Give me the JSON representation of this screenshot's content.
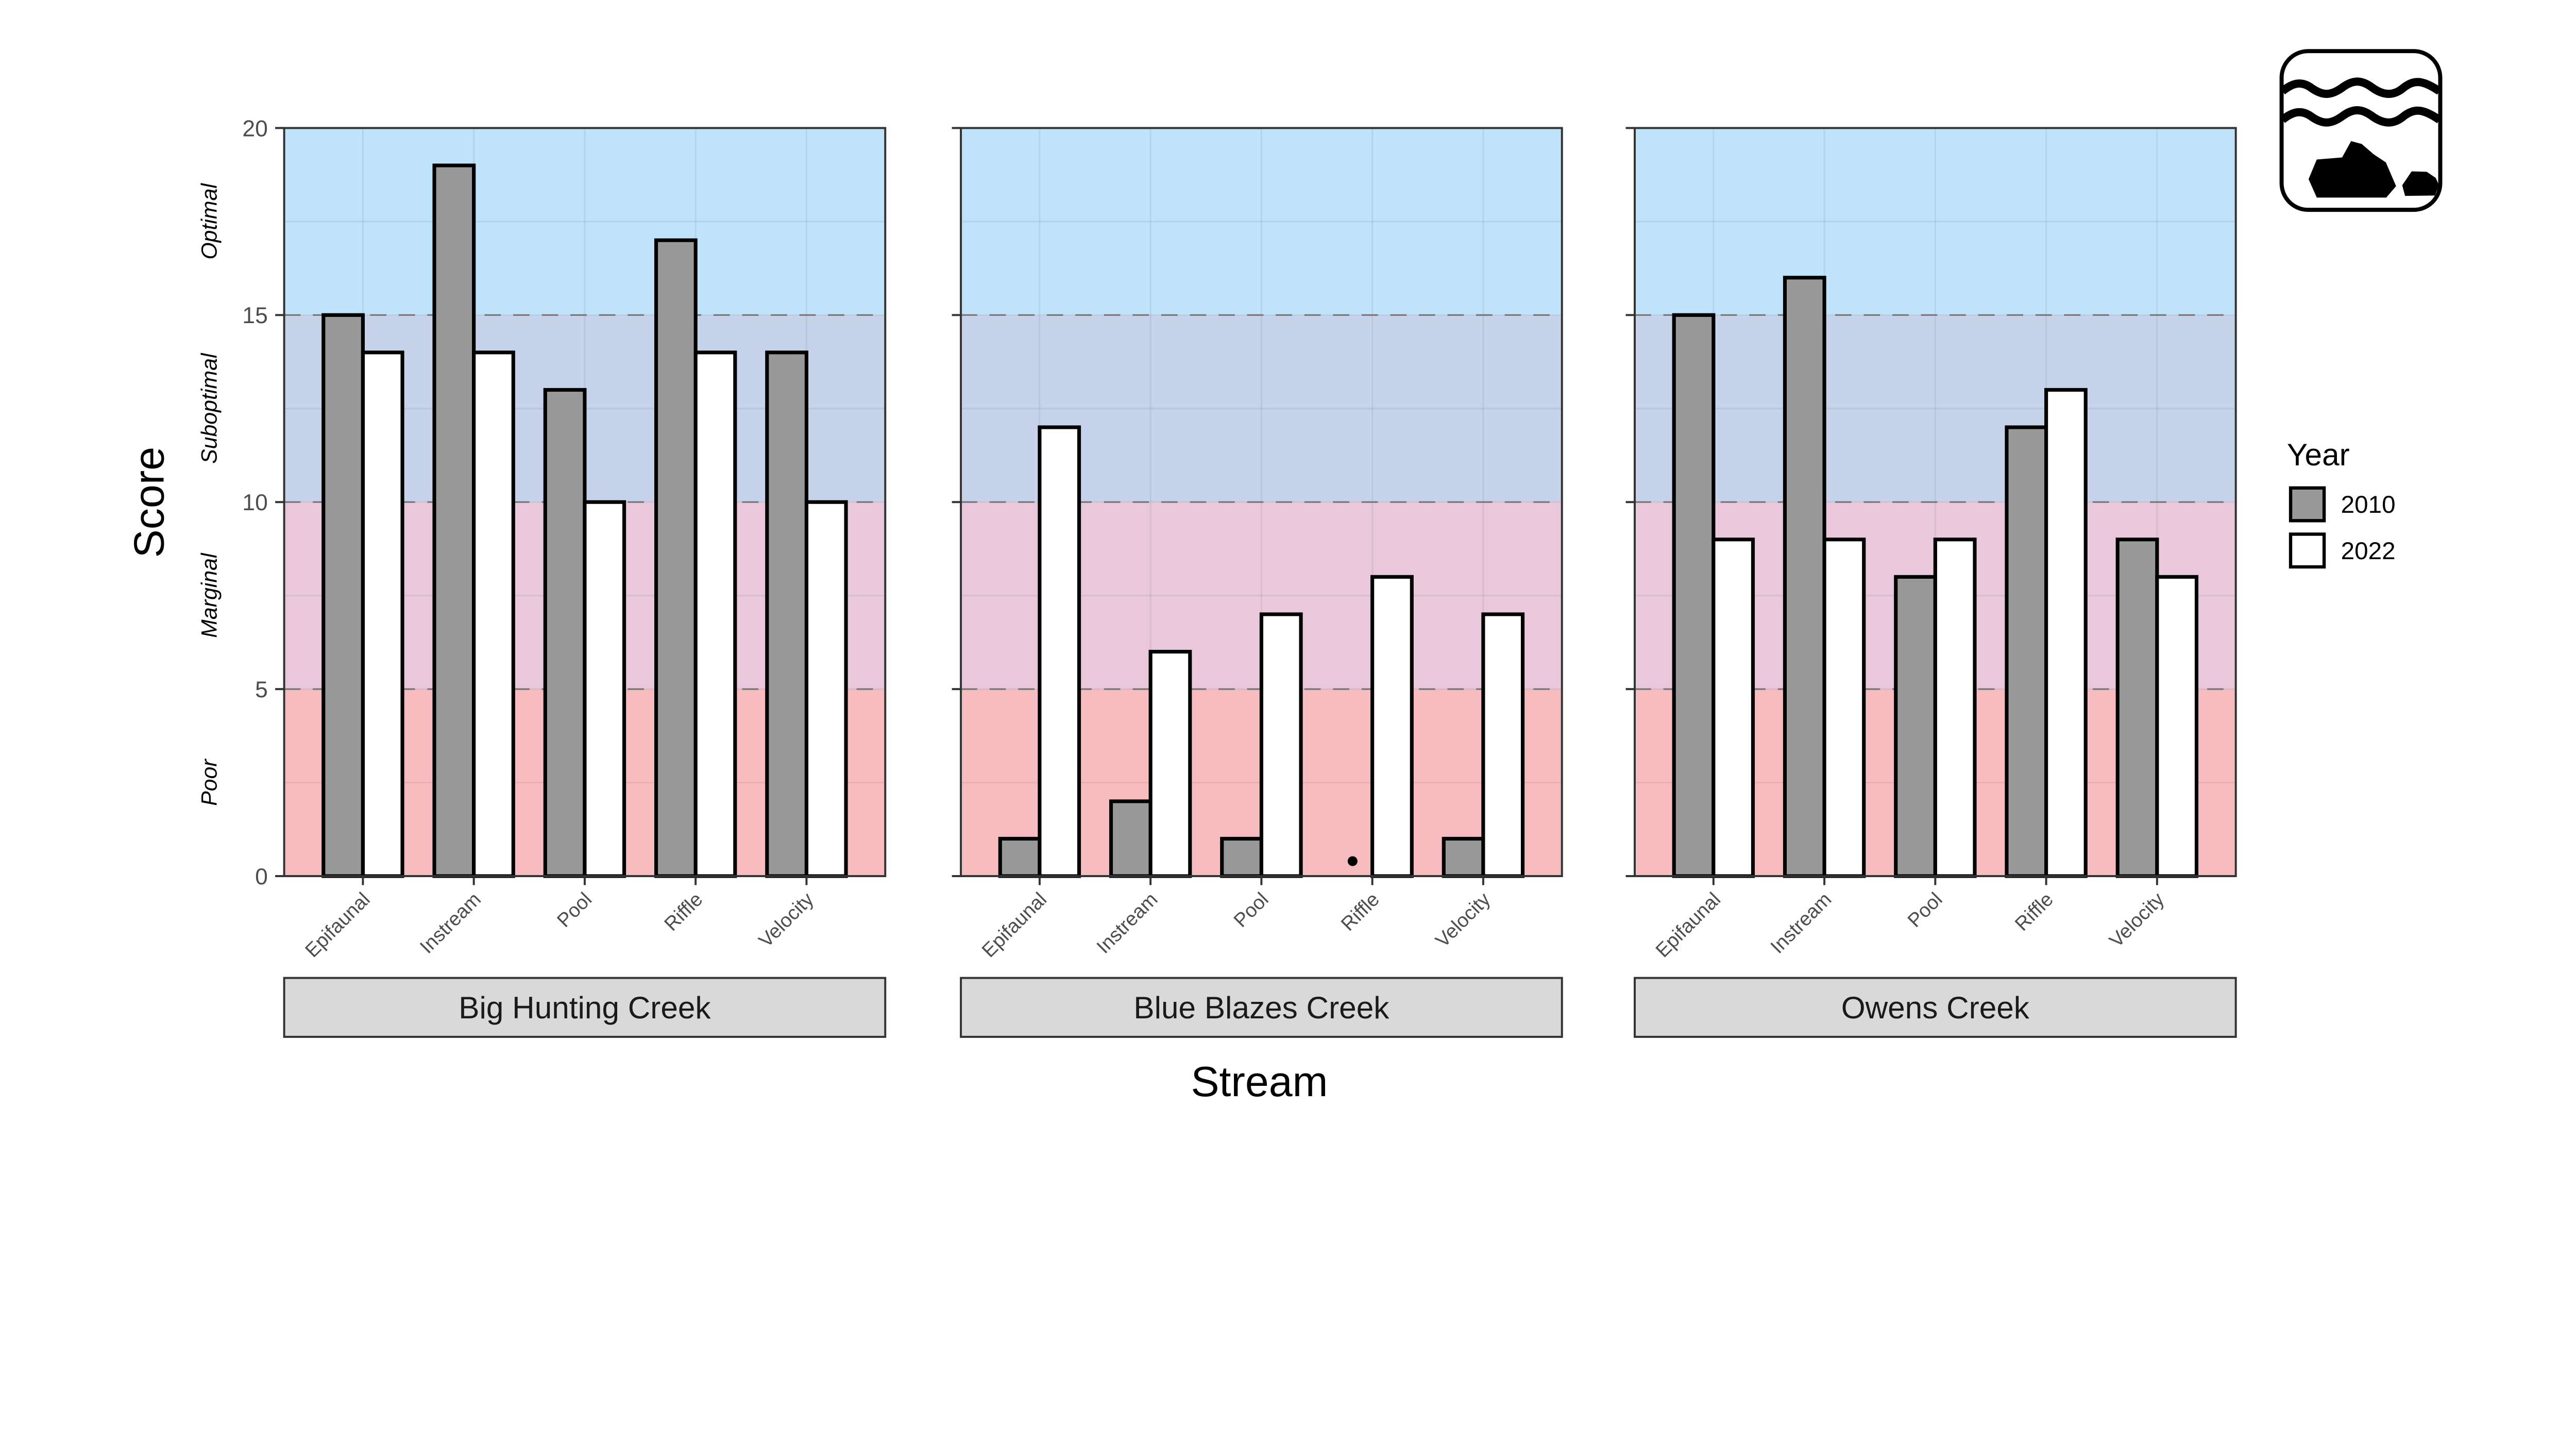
{
  "chart_data": {
    "type": "bar",
    "xlabel": "Stream",
    "ylabel": "Score",
    "ylim": [
      0,
      20
    ],
    "yticks": [
      "0",
      "5",
      "10",
      "15",
      "20"
    ],
    "grid": true,
    "legend": {
      "title": "Year",
      "placement": "right"
    },
    "categories": [
      "Epifaunal",
      "Instream",
      "Pool",
      "Riffle",
      "Velocity"
    ],
    "bands": [
      {
        "label": "Poor",
        "from": 0,
        "to": 5,
        "color": "#f7bcc0"
      },
      {
        "label": "Marginal",
        "from": 5,
        "to": 10,
        "color": "#e8c8da"
      },
      {
        "label": "Suboptimal",
        "from": 10,
        "to": 15,
        "color": "#c6d3ea"
      },
      {
        "label": "Optimal",
        "from": 15,
        "to": 20,
        "color": "#bee3fb"
      }
    ],
    "series_colors": {
      "2010": "#999999",
      "2022": "#ffffff"
    },
    "panels": [
      {
        "name": "Big Hunting Creek",
        "series": [
          {
            "name": "2010",
            "values": [
              15,
              19,
              13,
              17,
              14
            ]
          },
          {
            "name": "2022",
            "values": [
              14,
              14,
              10,
              14,
              10
            ]
          }
        ]
      },
      {
        "name": "Blue Blazes Creek",
        "series": [
          {
            "name": "2010",
            "values": [
              1,
              2,
              1,
              0,
              1
            ]
          },
          {
            "name": "2022",
            "values": [
              12,
              6,
              7,
              8,
              7
            ]
          }
        ],
        "points": [
          {
            "category": "Riffle",
            "series": "2010",
            "y": 0.4
          }
        ]
      },
      {
        "name": "Owens Creek",
        "series": [
          {
            "name": "2010",
            "values": [
              15,
              16,
              8,
              12,
              9
            ]
          },
          {
            "name": "2022",
            "values": [
              9,
              9,
              9,
              13,
              8
            ]
          }
        ]
      }
    ]
  },
  "icon": "stream-habitat-icon"
}
